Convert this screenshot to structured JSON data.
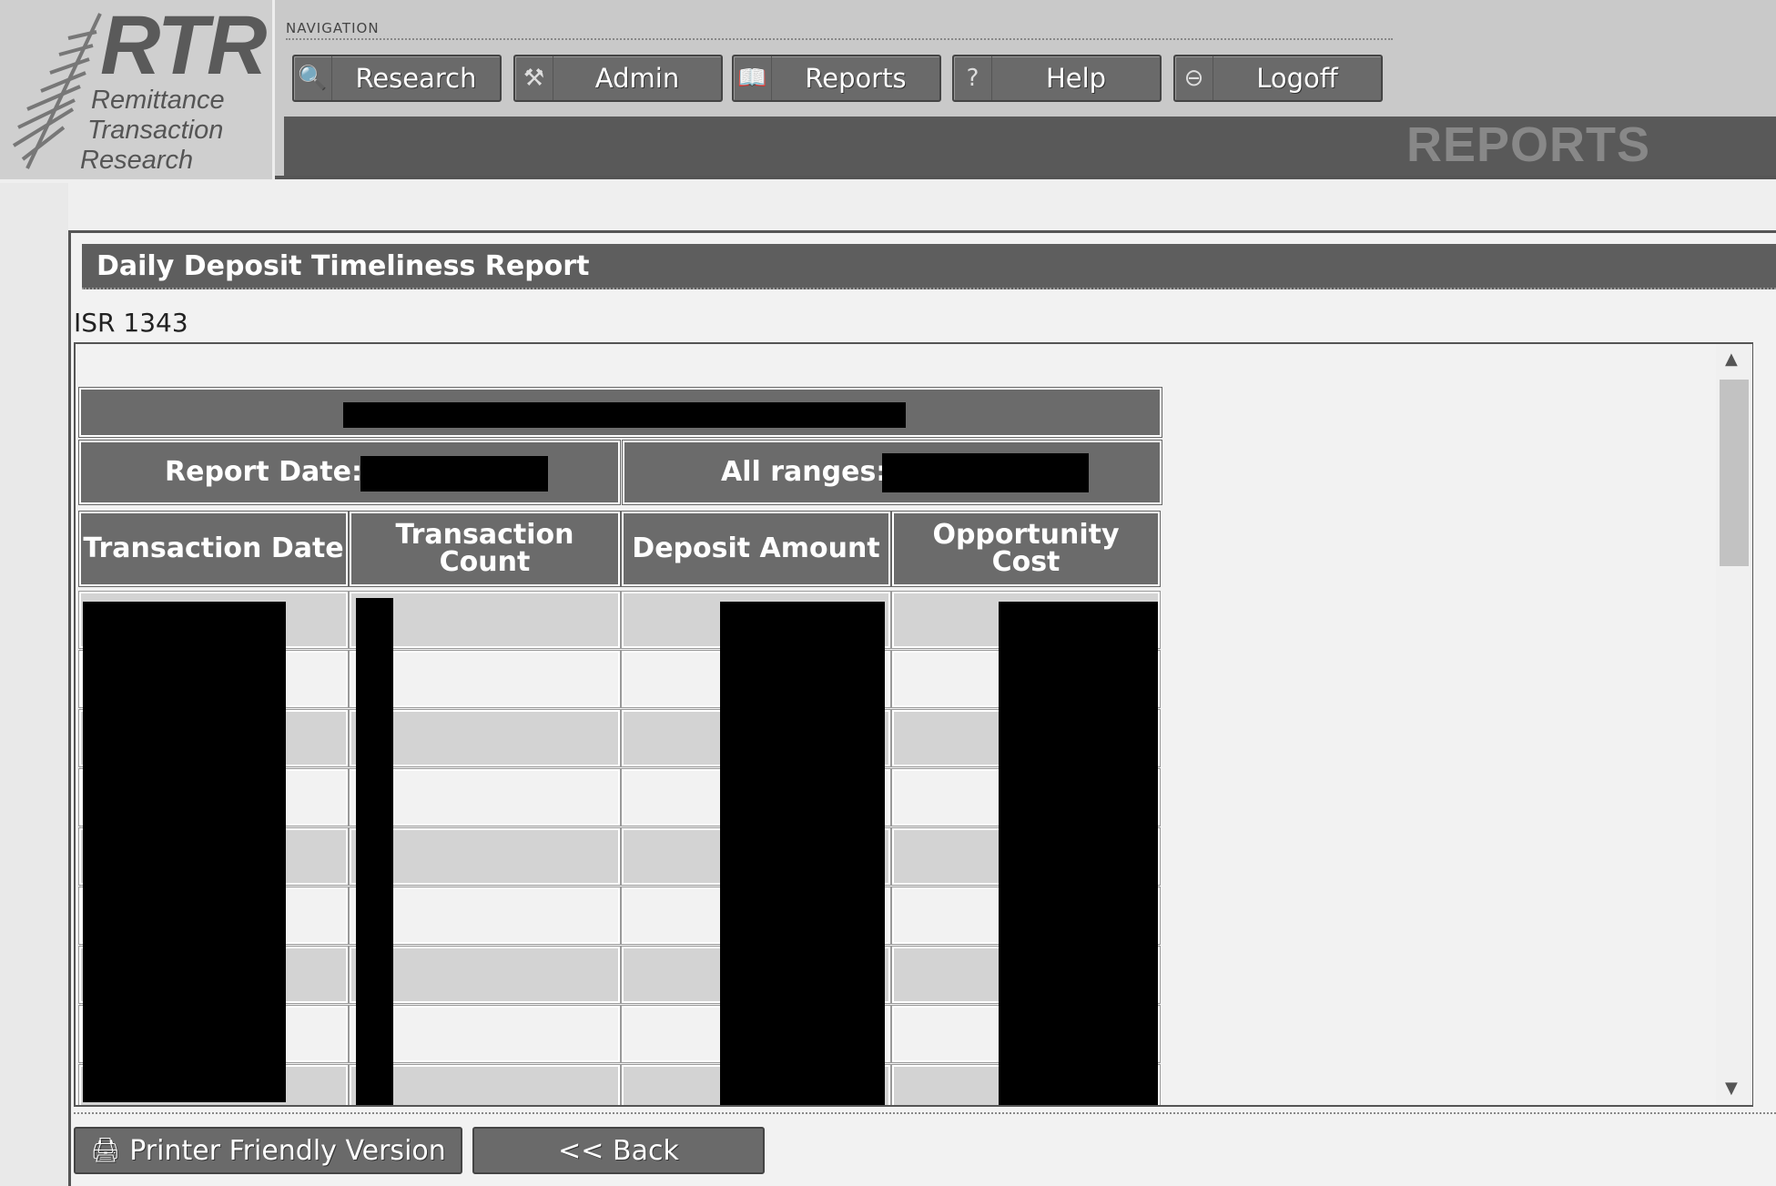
{
  "logo": {
    "mark": "RTR",
    "line1": "Remittance",
    "line2": "Transaction",
    "line3": "Research"
  },
  "nav": {
    "label": "NAVIGATION",
    "buttons": [
      {
        "label": "Research",
        "icon": "magnifier-icon",
        "glyph": "🔍"
      },
      {
        "label": "Admin",
        "icon": "tools-icon",
        "glyph": "⚒"
      },
      {
        "label": "Reports",
        "icon": "book-icon",
        "glyph": "📖"
      },
      {
        "label": "Help",
        "icon": "question-icon",
        "glyph": "?"
      },
      {
        "label": "Logoff",
        "icon": "minus-circle-icon",
        "glyph": "⊖"
      }
    ]
  },
  "section_title": "REPORTS",
  "report": {
    "title": "Daily Deposit Timeliness Report",
    "id": "ISR 1343",
    "report_date_label": "Report Date:",
    "all_ranges_label": "All ranges:",
    "columns": [
      "Transaction Date",
      "Transaction Count",
      "Deposit Amount",
      "Opportunity Cost"
    ]
  },
  "buttons": {
    "printer": "Printer Friendly Version",
    "back": "<< Back"
  },
  "colors": {
    "header": "#6b6b6b",
    "row_dark": "#d3d3d3",
    "row_light": "#f2f2f2"
  }
}
